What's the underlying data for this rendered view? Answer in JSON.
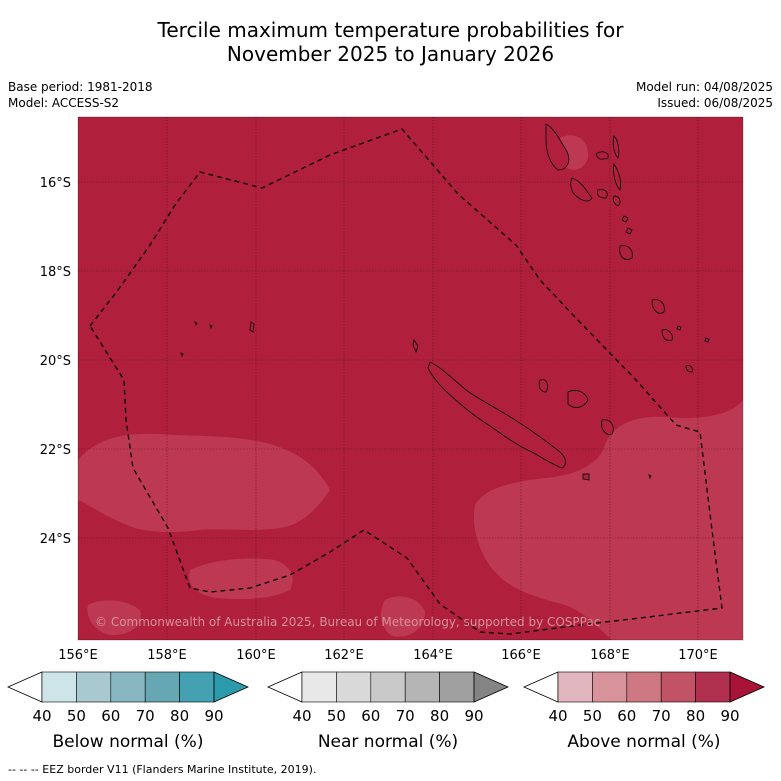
{
  "title_line1": "Tercile maximum temperature probabilities for",
  "title_line2": "November 2025 to January 2026",
  "base_period": "Base period: 1981-2018",
  "model": "Model: ACCESS-S2",
  "model_run": "Model run: 04/08/2025",
  "issued": "Issued: 06/08/2025",
  "copyright": "© Commonwealth of Australia 2025, Bureau of Meteorology, supported by COSPPac",
  "footnote": "-- -- -- EEZ border V11 (Flanders Marine Institute, 2019).",
  "map": {
    "lat_ticks": [
      "16°S",
      "18°S",
      "20°S",
      "22°S",
      "24°S"
    ],
    "lon_ticks": [
      "156°E",
      "158°E",
      "160°E",
      "162°E",
      "164°E",
      "166°E",
      "168°E",
      "170°E"
    ],
    "background_color": "#b01f3c",
    "lighter_region_color": "#bd3852"
  },
  "colorbars": [
    {
      "label": "Below normal (%)",
      "ticks": [
        "40",
        "50",
        "60",
        "70",
        "80",
        "90"
      ],
      "colors": [
        "#ffffff",
        "#cde4e9",
        "#a8c9cf",
        "#88b6c1",
        "#66a7b4",
        "#43a1b1",
        "#2b9aab"
      ]
    },
    {
      "label": "Near normal (%)",
      "ticks": [
        "40",
        "50",
        "60",
        "70",
        "80",
        "90"
      ],
      "colors": [
        "#ffffff",
        "#e8e8e8",
        "#d9d9d9",
        "#c9c9c9",
        "#b5b5b5",
        "#a0a0a0",
        "#848484"
      ]
    },
    {
      "label": "Above normal (%)",
      "ticks": [
        "40",
        "50",
        "60",
        "70",
        "80",
        "90"
      ],
      "colors": [
        "#ffffff",
        "#e2b6be",
        "#d89299",
        "#cd7882",
        "#c25366",
        "#b13050",
        "#a81438"
      ]
    }
  ]
}
